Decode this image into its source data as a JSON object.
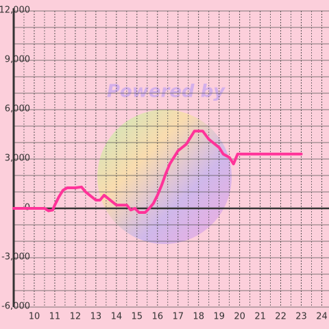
{
  "chart_data": {
    "type": "line",
    "watermark": "Powered by",
    "x": [
      9.0,
      10.5,
      10.7,
      10.9,
      11.0,
      11.2,
      11.4,
      11.6,
      12.0,
      12.3,
      12.5,
      12.8,
      13.0,
      13.2,
      13.4,
      13.6,
      13.9,
      14.0,
      14.5,
      14.7,
      14.9,
      15.1,
      15.4,
      15.6,
      15.8,
      16.0,
      16.2,
      16.4,
      16.6,
      16.8,
      17.0,
      17.2,
      17.4,
      17.6,
      17.8,
      18.0,
      18.2,
      18.5,
      18.8,
      19.0,
      19.2,
      19.5,
      19.7,
      19.9,
      20.0,
      23.0
    ],
    "series": [
      {
        "color": "#ff3399",
        "values": [
          0,
          0,
          -150,
          -100,
          200,
          700,
          1100,
          1250,
          1250,
          1300,
          1000,
          700,
          500,
          500,
          800,
          600,
          300,
          200,
          200,
          -100,
          0,
          -250,
          -250,
          0,
          300,
          800,
          1400,
          2100,
          2700,
          3100,
          3500,
          3700,
          3900,
          4300,
          4700,
          4700,
          4700,
          4200,
          3900,
          3700,
          3300,
          3100,
          2700,
          3300,
          3300,
          3300
        ]
      }
    ],
    "xlim": [
      9,
      24.35
    ],
    "xticks": [
      10,
      11,
      12,
      13,
      14,
      15,
      16,
      17,
      18,
      19,
      20,
      21,
      22,
      23,
      24
    ],
    "x_minor_ticks": [
      9.5,
      10.5,
      11.5,
      12.5,
      13.5,
      14.5,
      15.5,
      16.5,
      17.5,
      18.5,
      19.5,
      20.5,
      21.5,
      22.5,
      23.5
    ],
    "ylim": [
      -6000,
      12000
    ],
    "yticks": [
      {
        "value": -6000,
        "label": "-6,000"
      },
      {
        "value": -3000,
        "label": "-3,000"
      },
      0,
      {
        "value": 3000,
        "label": "3,000"
      },
      {
        "value": 6000,
        "label": "6,000"
      },
      {
        "value": 9000,
        "label": "9,000"
      },
      {
        "value": 12000,
        "label": "12,000"
      }
    ],
    "y_minor_ticks": [
      -5000,
      -4000,
      -2000,
      -1000,
      1000,
      2000,
      4000,
      5000,
      7000,
      8000,
      10000,
      11000
    ],
    "grid": true
  }
}
